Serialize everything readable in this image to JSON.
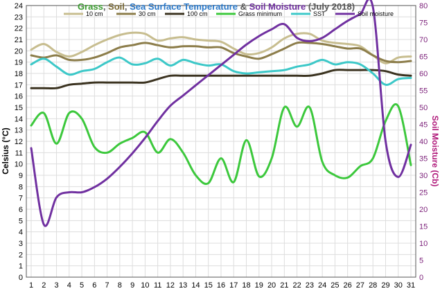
{
  "chart_data": {
    "type": "line",
    "title_parts": [
      {
        "text": "Grass",
        "color": "#3a9b2f"
      },
      {
        "text": ", ",
        "color": "#555555"
      },
      {
        "text": "Soil",
        "color": "#7a6a36"
      },
      {
        "text": ", ",
        "color": "#555555"
      },
      {
        "text": "Sea Surface Temperature",
        "color": "#2a78c8"
      },
      {
        "text": " & ",
        "color": "#555555"
      },
      {
        "text": "Soil Moisture",
        "color": "#7030a0"
      },
      {
        "text": " (July 2018)",
        "color": "#555555"
      }
    ],
    "ylabel": "Celsius (°C)",
    "y2label": "Soil Moisture (Cb)",
    "x": [
      1,
      2,
      3,
      4,
      5,
      6,
      7,
      8,
      9,
      10,
      11,
      12,
      13,
      14,
      15,
      16,
      17,
      18,
      19,
      20,
      21,
      22,
      23,
      24,
      25,
      26,
      27,
      28,
      29,
      30,
      31
    ],
    "xlim": [
      1,
      31
    ],
    "ylim": [
      0,
      24
    ],
    "y2lim": [
      0,
      80
    ],
    "yticks": [
      0,
      1,
      2,
      3,
      4,
      5,
      6,
      7,
      8,
      9,
      10,
      11,
      12,
      13,
      14,
      15,
      16,
      17,
      18,
      19,
      20,
      21,
      22,
      23,
      24
    ],
    "y2ticks": [
      0,
      5,
      10,
      15,
      20,
      25,
      30,
      35,
      40,
      45,
      50,
      55,
      60,
      65,
      70,
      75,
      80
    ],
    "grid": true,
    "legend_position": "top",
    "series": [
      {
        "name": "10 cm",
        "axis": "left",
        "color": "#c7bd8f",
        "width": 3,
        "values": [
          20.1,
          20.6,
          19.9,
          19.5,
          19.9,
          20.5,
          21.0,
          21.4,
          21.6,
          21.5,
          20.9,
          21.1,
          21.2,
          21.0,
          20.9,
          20.8,
          20.2,
          19.7,
          19.8,
          20.3,
          21.1,
          21.5,
          21.5,
          20.9,
          20.7,
          20.6,
          20.4,
          19.6,
          18.9,
          19.4,
          19.5
        ]
      },
      {
        "name": "30 cm",
        "axis": "left",
        "color": "#8c7d4a",
        "width": 3,
        "values": [
          19.6,
          19.4,
          19.6,
          19.2,
          19.2,
          19.4,
          19.8,
          20.3,
          20.5,
          20.7,
          20.5,
          20.3,
          20.4,
          20.4,
          20.3,
          20.3,
          19.8,
          19.5,
          19.3,
          19.7,
          20.2,
          20.7,
          20.7,
          20.6,
          20.4,
          20.2,
          20.2,
          19.6,
          19.1,
          19.0,
          19.1
        ]
      },
      {
        "name": "100 cm",
        "axis": "left",
        "color": "#3b3320",
        "width": 3,
        "values": [
          16.7,
          16.7,
          16.7,
          17.0,
          17.1,
          17.2,
          17.2,
          17.2,
          17.2,
          17.2,
          17.5,
          17.8,
          17.8,
          17.8,
          17.8,
          17.8,
          17.8,
          17.8,
          17.8,
          17.8,
          17.8,
          17.8,
          17.8,
          18.0,
          18.3,
          18.3,
          18.3,
          18.3,
          18.2,
          17.9,
          17.8
        ]
      },
      {
        "name": "Grass minimum",
        "axis": "left",
        "color": "#3cc83c",
        "width": 3,
        "values": [
          13.4,
          14.5,
          11.8,
          14.5,
          14.0,
          11.5,
          11.0,
          11.8,
          12.3,
          12.8,
          11.0,
          12.2,
          11.0,
          9.0,
          8.3,
          10.5,
          8.4,
          12.1,
          8.9,
          10.5,
          15.0,
          13.3,
          15.0,
          10.2,
          9.0,
          8.8,
          9.8,
          10.5,
          13.8,
          15.1,
          9.9
        ]
      },
      {
        "name": "SST",
        "axis": "left",
        "color": "#3cc8c8",
        "width": 3,
        "values": [
          18.8,
          19.3,
          18.6,
          17.9,
          18.2,
          18.4,
          19.0,
          19.4,
          18.8,
          18.9,
          19.3,
          18.7,
          19.2,
          18.9,
          18.7,
          18.8,
          18.2,
          18.0,
          18.1,
          18.2,
          18.3,
          18.6,
          18.8,
          19.2,
          18.8,
          19.0,
          18.8,
          18.0,
          17.0,
          17.5,
          17.6
        ]
      },
      {
        "name": "Soil moisture",
        "axis": "right",
        "color": "#7030a0",
        "width": 3,
        "values": [
          38,
          15.5,
          23.5,
          25,
          25,
          26.5,
          29,
          32.5,
          36.5,
          41,
          46,
          50.5,
          53.5,
          56.5,
          59.5,
          62.5,
          65.5,
          68.5,
          71,
          73,
          74.5,
          70.5,
          69.5,
          70.5,
          73,
          75.5,
          77.5,
          79.5,
          40,
          29.5,
          39
        ]
      }
    ]
  }
}
